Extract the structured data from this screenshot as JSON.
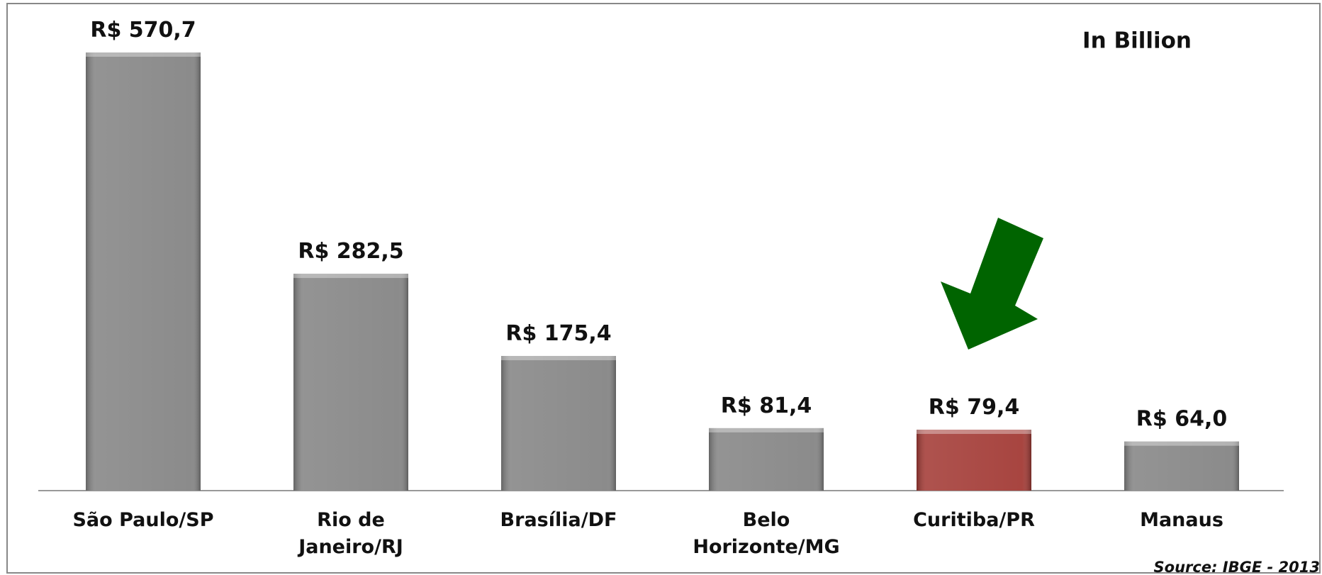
{
  "chart_data": {
    "type": "bar",
    "annotation": "In Billion",
    "source": "Source: IBGE - 2013",
    "categories": [
      "São Paulo/SP",
      "Rio de Janeiro/RJ",
      "Brasília/DF",
      "Belo Horizonte/MG",
      "Curitiba/PR",
      "Manaus"
    ],
    "values": [
      570.7,
      282.5,
      175.4,
      81.4,
      79.4,
      64.0
    ],
    "value_labels": [
      "R$ 570,7",
      "R$ 282,5",
      "R$ 175,4",
      "R$ 81,4",
      "R$ 79,4",
      "R$ 64,0"
    ],
    "colors": [
      "#858585",
      "#858585",
      "#858585",
      "#858585",
      "#a33b36",
      "#858585"
    ]
  }
}
